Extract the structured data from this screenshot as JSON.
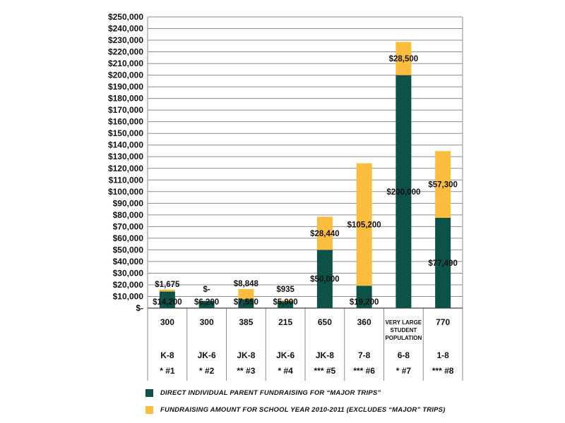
{
  "chart_data": {
    "type": "bar",
    "stacked": true,
    "ylim": [
      0,
      250000
    ],
    "y_ticks": [
      {
        "value": 0,
        "label": "$-"
      },
      {
        "value": 10000,
        "label": "$10,000"
      },
      {
        "value": 20000,
        "label": "$20,000"
      },
      {
        "value": 30000,
        "label": "$30,000"
      },
      {
        "value": 40000,
        "label": "$40,000"
      },
      {
        "value": 50000,
        "label": "$50,000"
      },
      {
        "value": 60000,
        "label": "$60,000"
      },
      {
        "value": 70000,
        "label": "$70,000"
      },
      {
        "value": 80000,
        "label": "$80,000"
      },
      {
        "value": 90000,
        "label": "$90,000"
      },
      {
        "value": 100000,
        "label": "$100,000"
      },
      {
        "value": 110000,
        "label": "$110,000"
      },
      {
        "value": 120000,
        "label": "$120,000"
      },
      {
        "value": 130000,
        "label": "$130,000"
      },
      {
        "value": 140000,
        "label": "$140,000"
      },
      {
        "value": 150000,
        "label": "$150,000"
      },
      {
        "value": 160000,
        "label": "$160,000"
      },
      {
        "value": 170000,
        "label": "$170,000"
      },
      {
        "value": 180000,
        "label": "$180,000"
      },
      {
        "value": 190000,
        "label": "$190,000"
      },
      {
        "value": 200000,
        "label": "$200,000"
      },
      {
        "value": 210000,
        "label": "$210,000"
      },
      {
        "value": 220000,
        "label": "$220,000"
      },
      {
        "value": 230000,
        "label": "$230,000"
      },
      {
        "value": 240000,
        "label": "$240,000"
      },
      {
        "value": 250000,
        "label": "$250,000"
      }
    ],
    "grid": true,
    "categories": [
      {
        "population": "300",
        "grades": "K-8",
        "code": "* #1"
      },
      {
        "population": "300",
        "grades": "JK-6",
        "code": "* #2"
      },
      {
        "population": "385",
        "grades": "JK-8",
        "code": "** #3"
      },
      {
        "population": "215",
        "grades": "JK-6",
        "code": "* #4"
      },
      {
        "population": "650",
        "grades": "JK-8",
        "code": "*** #5"
      },
      {
        "population": "360",
        "grades": "7-8",
        "code": "*** #6"
      },
      {
        "population": "VERY LARGE STUDENT POPULATION",
        "population_lines": [
          "VERY LARGE",
          "STUDENT",
          "POPULATION"
        ],
        "grades": "6-8",
        "code": "* #7"
      },
      {
        "population": "770",
        "grades": "1-8",
        "code": "*** #8"
      }
    ],
    "series": [
      {
        "name": "DIRECT INDIVIDUAL PARENT FUNDRAISING FOR “MAJOR TRIPS”",
        "color": "#0d5248",
        "values": [
          14200,
          6200,
          7550,
          5900,
          50000,
          19200,
          200000,
          77490
        ],
        "labels": [
          "$14,200",
          "$6,200",
          "$7,550",
          "$5,900",
          "$50,000",
          "$19,200",
          "$200,000",
          "$77,490"
        ]
      },
      {
        "name": "FUNDRAISING AMOUNT FOR SCHOOL YEAR 2010-2011 (EXCLUDES “MAJOR” TRIPS)",
        "color": "#fbbd3e",
        "values": [
          1675,
          0,
          8848,
          935,
          28440,
          105200,
          28500,
          57300
        ],
        "labels": [
          "$1,675",
          "$-",
          "$8,848",
          "$935",
          "$28,440",
          "$105,200",
          "$28,500",
          "$57,300"
        ]
      }
    ],
    "legend_position": "bottom"
  }
}
